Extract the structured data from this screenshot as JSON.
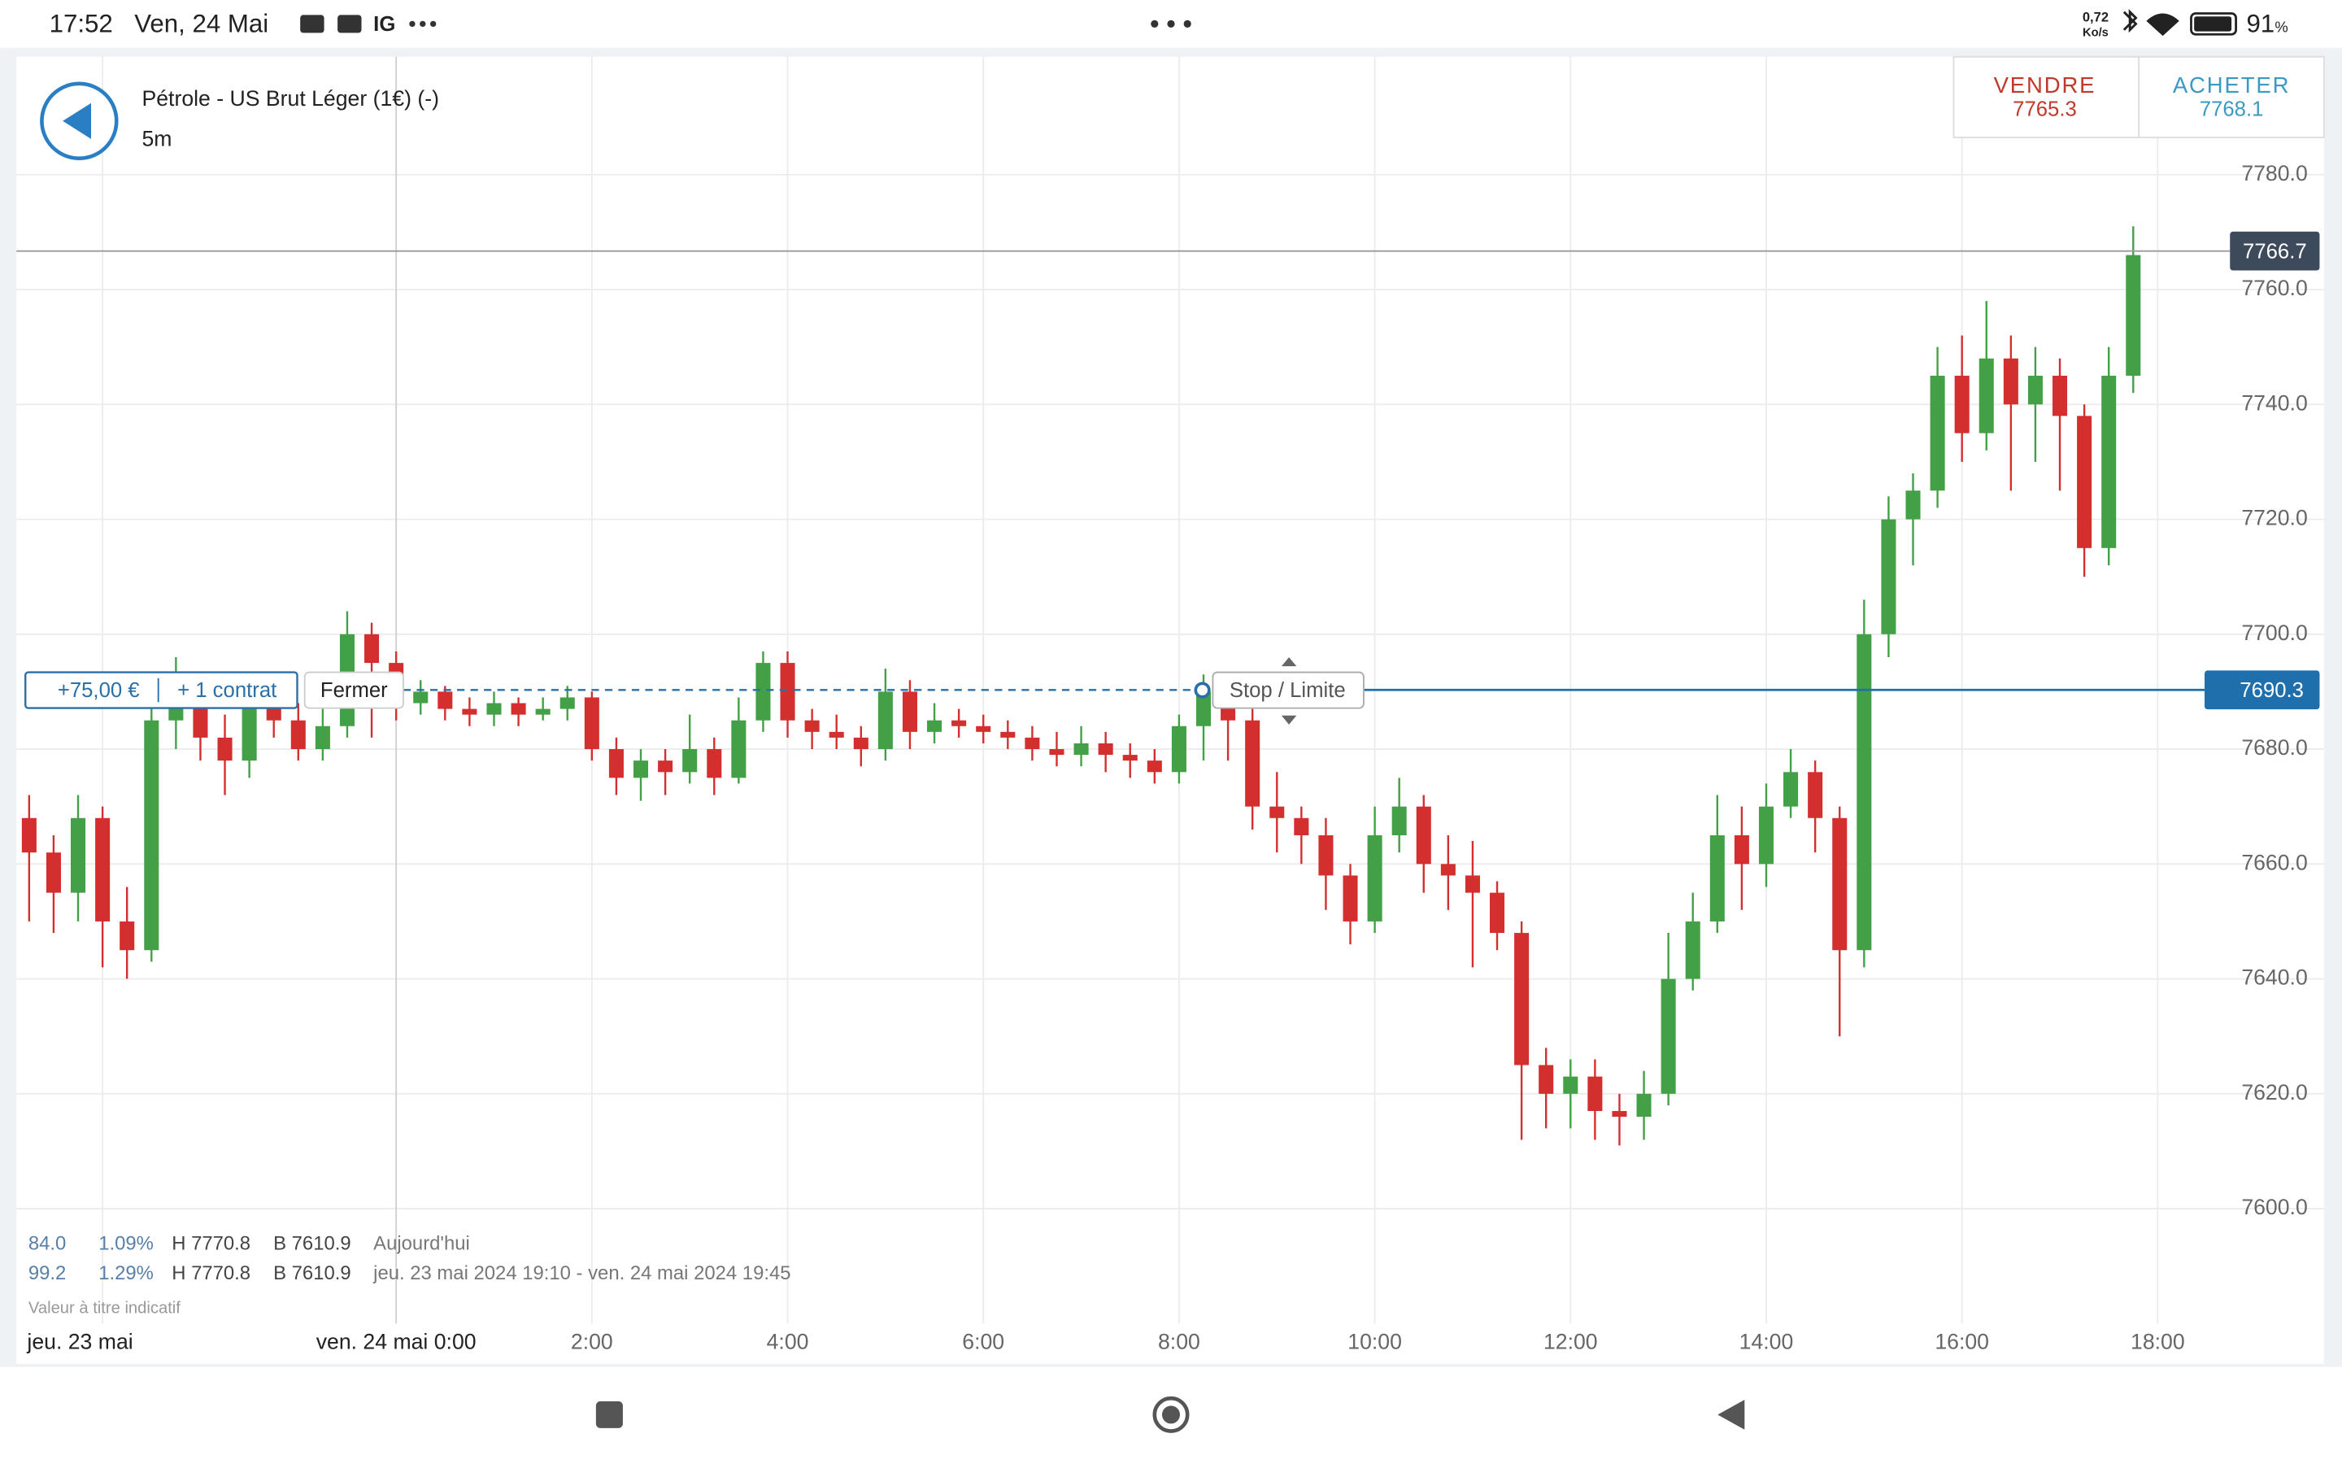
{
  "status_bar": {
    "time": "17:52",
    "date": "Ven, 24 Mai",
    "app": "IG",
    "speed": "0,72",
    "speed_unit": "Ko/s",
    "battery": "91",
    "battery_unit": "%"
  },
  "trade": {
    "sell_label": "VENDRE",
    "sell_price": "7765.3",
    "buy_label": "ACHETER",
    "buy_price": "7768.1",
    "pnl": "+75,00 €",
    "size": "+ 1 contrat",
    "close_button": "Fermer",
    "stop_button": "Stop / Limite"
  },
  "stats": {
    "rows": [
      [
        "84.0",
        "1.09%",
        "H 7770.8",
        "B 7610.9",
        "Aujourd'hui"
      ],
      [
        "99.2",
        "1.29%",
        "H 7770.8",
        "B 7610.9",
        "jeu. 23 mai 2024 19:10 - ven. 24 mai 2024 19:45"
      ]
    ],
    "note": "Valeur à titre indicatif"
  },
  "chart_data": {
    "type": "candlestick",
    "title": "Pétrole - US Brut Léger (1€) (-)",
    "subtitle": "5m",
    "x": [
      -3.75,
      -3.5,
      -3.25,
      -3,
      -2.75,
      -2.5,
      -2.25,
      -2,
      -1.75,
      -1.5,
      -1.25,
      -1,
      -0.75,
      -0.5,
      -0.25,
      0,
      0.25,
      0.5,
      0.75,
      1,
      1.25,
      1.5,
      1.75,
      2,
      2.25,
      2.5,
      2.75,
      3,
      3.25,
      3.5,
      3.75,
      4,
      4.25,
      4.5,
      4.75,
      5,
      5.25,
      5.5,
      5.75,
      6,
      6.25,
      6.5,
      6.75,
      7,
      7.25,
      7.5,
      7.75,
      8,
      8.25,
      8.5,
      8.75,
      9,
      9.25,
      9.5,
      9.75,
      10,
      10.25,
      10.5,
      10.75,
      11,
      11.25,
      11.5,
      11.75,
      12,
      12.25,
      12.5,
      12.75,
      13,
      13.25,
      13.5,
      13.75,
      14,
      14.25,
      14.5,
      14.75,
      15,
      15.25,
      15.5,
      15.75,
      16,
      16.25,
      16.5,
      16.75,
      17,
      17.25,
      17.5,
      17.75
    ],
    "open": [
      7668,
      7662,
      7655,
      7668,
      7650,
      7645,
      7685,
      7690,
      7682,
      7678,
      7688,
      7685,
      7680,
      7684,
      7700,
      7695,
      7688,
      7690,
      7687,
      7686,
      7688,
      7686,
      7687,
      7689,
      7680,
      7675,
      7678,
      7676,
      7680,
      7675,
      7685,
      7695,
      7685,
      7683,
      7682,
      7680,
      7690,
      7683,
      7685,
      7684,
      7683,
      7682,
      7680,
      7679,
      7681,
      7679,
      7678,
      7676,
      7684,
      7690,
      7685,
      7670,
      7668,
      7665,
      7658,
      7650,
      7665,
      7670,
      7660,
      7658,
      7655,
      7648,
      7625,
      7620,
      7623,
      7617,
      7616,
      7620,
      7640,
      7650,
      7665,
      7660,
      7670,
      7676,
      7668,
      7645,
      7700,
      7720,
      7725,
      7745,
      7735,
      7748,
      7740,
      7745,
      7738,
      7715,
      7745
    ],
    "high": [
      7672,
      7665,
      7672,
      7670,
      7656,
      7690,
      7696,
      7692,
      7686,
      7690,
      7692,
      7688,
      7688,
      7704,
      7702,
      7697,
      7692,
      7691,
      7689,
      7690,
      7689,
      7689,
      7691,
      7690,
      7682,
      7680,
      7680,
      7686,
      7682,
      7689,
      7697,
      7697,
      7687,
      7686,
      7684,
      7694,
      7692,
      7688,
      7687,
      7686,
      7685,
      7684,
      7683,
      7684,
      7683,
      7681,
      7680,
      7686,
      7693,
      7692,
      7687,
      7676,
      7670,
      7668,
      7660,
      7670,
      7675,
      7672,
      7665,
      7664,
      7657,
      7650,
      7628,
      7626,
      7626,
      7620,
      7624,
      7648,
      7655,
      7672,
      7670,
      7674,
      7680,
      7678,
      7670,
      7706,
      7724,
      7728,
      7750,
      7752,
      7758,
      7752,
      7750,
      7748,
      7740,
      7750,
      7771
    ],
    "low": [
      7650,
      7648,
      7650,
      7642,
      7640,
      7643,
      7680,
      7678,
      7672,
      7675,
      7682,
      7678,
      7678,
      7682,
      7682,
      7685,
      7686,
      7685,
      7684,
      7684,
      7684,
      7685,
      7685,
      7678,
      7672,
      7671,
      7672,
      7674,
      7672,
      7674,
      7683,
      7682,
      7680,
      7680,
      7677,
      7678,
      7680,
      7681,
      7682,
      7681,
      7680,
      7678,
      7677,
      7677,
      7676,
      7675,
      7674,
      7674,
      7678,
      7678,
      7666,
      7662,
      7660,
      7652,
      7646,
      7648,
      7662,
      7655,
      7652,
      7642,
      7645,
      7612,
      7614,
      7614,
      7612,
      7611,
      7612,
      7618,
      7638,
      7648,
      7652,
      7656,
      7668,
      7662,
      7630,
      7642,
      7696,
      7712,
      7722,
      7730,
      7732,
      7725,
      7730,
      7725,
      7710,
      7712,
      7742
    ],
    "close": [
      7662,
      7655,
      7668,
      7650,
      7645,
      7685,
      7690,
      7682,
      7678,
      7688,
      7685,
      7680,
      7684,
      7700,
      7695,
      7688,
      7690,
      7687,
      7686,
      7688,
      7686,
      7687,
      7689,
      7680,
      7675,
      7678,
      7676,
      7680,
      7675,
      7685,
      7695,
      7685,
      7683,
      7682,
      7680,
      7690,
      7683,
      7685,
      7684,
      7683,
      7682,
      7680,
      7679,
      7681,
      7679,
      7678,
      7676,
      7684,
      7690,
      7685,
      7670,
      7668,
      7665,
      7658,
      7650,
      7665,
      7670,
      7660,
      7658,
      7655,
      7648,
      7625,
      7620,
      7623,
      7617,
      7616,
      7620,
      7640,
      7650,
      7665,
      7660,
      7670,
      7676,
      7668,
      7645,
      7700,
      7720,
      7725,
      7745,
      7735,
      7748,
      7740,
      7745,
      7738,
      7715,
      7745,
      7766
    ],
    "up_color": "#43a047",
    "down_color": "#d32f2f",
    "xlim": [
      -3.88,
      19.7
    ],
    "ylim": [
      7580,
      7800
    ],
    "xticks": [
      {
        "value": -3,
        "label": "jeu. 23 mai"
      },
      {
        "value": 0,
        "label": "ven. 24 mai 0:00"
      },
      {
        "value": 2,
        "label": "2:00"
      },
      {
        "value": 4,
        "label": "4:00"
      },
      {
        "value": 6,
        "label": "6:00"
      },
      {
        "value": 8,
        "label": "8:00"
      },
      {
        "value": 10,
        "label": "10:00"
      },
      {
        "value": 12,
        "label": "12:00"
      },
      {
        "value": 14,
        "label": "14:00"
      },
      {
        "value": 16,
        "label": "16:00"
      },
      {
        "value": 18,
        "label": "18:00"
      }
    ],
    "yticks": [
      {
        "value": 7600,
        "label": "7600.0"
      },
      {
        "value": 7620,
        "label": "7620.0"
      },
      {
        "value": 7640,
        "label": "7640.0"
      },
      {
        "value": 7660,
        "label": "7660.0"
      },
      {
        "value": 7680,
        "label": "7680.0"
      },
      {
        "value": 7700,
        "label": "7700.0"
      },
      {
        "value": 7720,
        "label": "7720.0"
      },
      {
        "value": 7740,
        "label": "7740.0"
      },
      {
        "value": 7760,
        "label": "7760.0"
      },
      {
        "value": 7780,
        "label": "7780.0"
      }
    ],
    "grid": true,
    "last_price": 7766.7,
    "position_level": 7690.3
  }
}
